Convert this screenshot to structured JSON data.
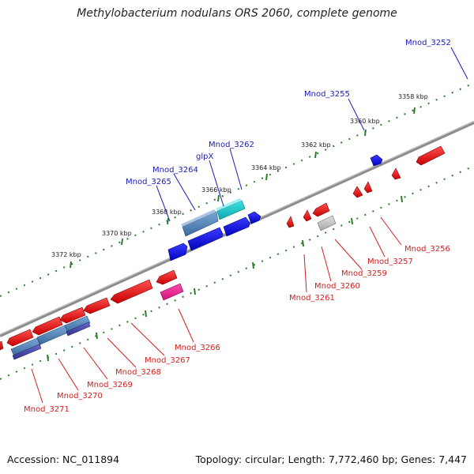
{
  "title": "Methylobacterium nodulans ORS 2060, complete genome",
  "footer": {
    "accession": "Accession: NC_011894",
    "summary": "Topology: circular; Length: 7,772,460 bp; Genes: 7,447"
  },
  "colors": {
    "forward_label": "#1a1ab8",
    "reverse_label": "#d42020",
    "tick": "#2e7d2e",
    "backbone": "#8c8c8c"
  },
  "scale_labels": [
    "3358 kbp",
    "3360 kbp",
    "3362 kbp",
    "3364 kbp",
    "3366 kbp",
    "3368 kbp",
    "3370 kbp",
    "3372 kbp"
  ],
  "gene_labels": {
    "forward": [
      "Mnod_3252",
      "Mnod_3255",
      "Mnod_3262",
      "glpX",
      "Mnod_3264",
      "Mnod_3265"
    ],
    "reverse": [
      "Mnod_3256",
      "Mnod_3257",
      "Mnod_3259",
      "Mnod_3260",
      "Mnod_3261",
      "Mnod_3266",
      "Mnod_3267",
      "Mnod_3268",
      "Mnod_3269",
      "Mnod_3270",
      "Mnod_3271"
    ]
  }
}
